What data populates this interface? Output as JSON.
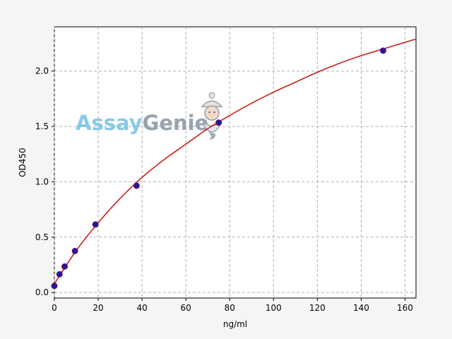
{
  "chart_data": {
    "type": "scatter",
    "title": "",
    "xlabel": "ng/ml",
    "ylabel": "OD450",
    "xlim": [
      0,
      165
    ],
    "ylim": [
      -0.05,
      2.4
    ],
    "xticks": [
      0,
      20,
      40,
      60,
      80,
      100,
      120,
      140,
      160
    ],
    "yticks": [
      0.0,
      0.5,
      1.0,
      1.5,
      2.0
    ],
    "xtick_labels": [
      "0",
      "20",
      "40",
      "60",
      "80",
      "100",
      "120",
      "140",
      "160"
    ],
    "ytick_labels": [
      "0.0",
      "0.5",
      "1.0",
      "1.5",
      "2.0"
    ],
    "grid": true,
    "series": [
      {
        "kind": "points",
        "x": [
          0,
          2.34,
          4.69,
          9.38,
          18.75,
          37.5,
          75,
          150
        ],
        "y": [
          0.06,
          0.165,
          0.235,
          0.375,
          0.615,
          0.965,
          1.535,
          2.185
        ]
      },
      {
        "kind": "fit-curve",
        "x": [
          0,
          10,
          20,
          30,
          40,
          50,
          60,
          70,
          80,
          90,
          100,
          110,
          120,
          130,
          140,
          150,
          160,
          165
        ],
        "y": [
          0.08,
          0.38,
          0.63,
          0.85,
          1.04,
          1.2,
          1.34,
          1.48,
          1.6,
          1.71,
          1.81,
          1.9,
          1.99,
          2.07,
          2.14,
          2.2,
          2.26,
          2.29
        ]
      }
    ],
    "colors": {
      "points_fill": "#1a1aa6",
      "points_edge": "#7a0a5a",
      "curve": "#c8201e"
    }
  },
  "watermark": {
    "part1": "Assay",
    "part2": "Genie",
    "color1": "#7cc4e6",
    "color2": "#8c9aa8",
    "icon": "genie-mascot-icon"
  }
}
